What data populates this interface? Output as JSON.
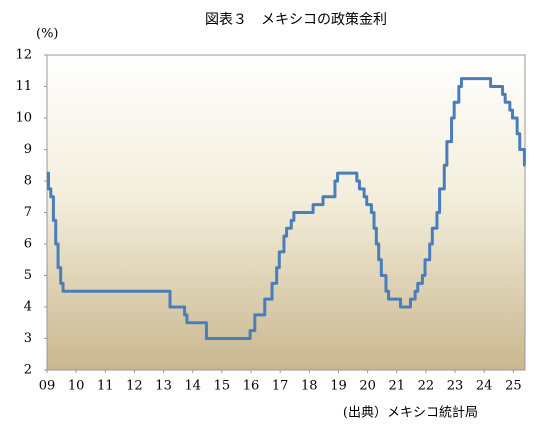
{
  "chart_data": {
    "type": "step",
    "title": "図表３　メキシコの政策金利",
    "y_label": "(%)",
    "source": "(出典）メキシコ統計局",
    "color": "#4a7ebb",
    "xlim": [
      2009,
      2025.4
    ],
    "ylim": [
      2,
      12
    ],
    "yticks": [
      2,
      3,
      4,
      5,
      6,
      7,
      8,
      9,
      10,
      11,
      12
    ],
    "xticks": [
      {
        "value": 2009,
        "label": "09"
      },
      {
        "value": 2010,
        "label": "10"
      },
      {
        "value": 2011,
        "label": "11"
      },
      {
        "value": 2012,
        "label": "12"
      },
      {
        "value": 2013,
        "label": "13"
      },
      {
        "value": 2014,
        "label": "14"
      },
      {
        "value": 2015,
        "label": "15"
      },
      {
        "value": 2016,
        "label": "16"
      },
      {
        "value": 2017,
        "label": "17"
      },
      {
        "value": 2018,
        "label": "18"
      },
      {
        "value": 2019,
        "label": "19"
      },
      {
        "value": 2020,
        "label": "20"
      },
      {
        "value": 2021,
        "label": "21"
      },
      {
        "value": 2022,
        "label": "22"
      },
      {
        "value": 2023,
        "label": "23"
      },
      {
        "value": 2024,
        "label": "24"
      },
      {
        "value": 2025,
        "label": "25"
      }
    ],
    "x": [
      2009.0,
      2009.05,
      2009.13,
      2009.22,
      2009.3,
      2009.38,
      2009.47,
      2009.55,
      2013.22,
      2013.72,
      2013.8,
      2014.47,
      2015.97,
      2016.13,
      2016.47,
      2016.72,
      2016.88,
      2016.97,
      2017.13,
      2017.22,
      2017.38,
      2017.47,
      2018.13,
      2018.47,
      2018.88,
      2018.97,
      2019.63,
      2019.72,
      2019.88,
      2019.97,
      2020.13,
      2020.22,
      2020.3,
      2020.38,
      2020.47,
      2020.63,
      2020.72,
      2021.13,
      2021.47,
      2021.63,
      2021.72,
      2021.88,
      2021.97,
      2022.13,
      2022.22,
      2022.38,
      2022.47,
      2022.63,
      2022.72,
      2022.88,
      2022.97,
      2023.13,
      2023.22,
      2024.22,
      2024.63,
      2024.72,
      2024.88,
      2024.97,
      2025.13,
      2025.22,
      2025.38
    ],
    "values": [
      8.25,
      7.75,
      7.5,
      6.75,
      6.0,
      5.25,
      4.75,
      4.5,
      4.0,
      3.75,
      3.5,
      3.0,
      3.25,
      3.75,
      4.25,
      4.75,
      5.25,
      5.75,
      6.25,
      6.5,
      6.75,
      7.0,
      7.25,
      7.5,
      8.0,
      8.25,
      8.0,
      7.75,
      7.5,
      7.25,
      7.0,
      6.5,
      6.0,
      5.5,
      5.0,
      4.5,
      4.25,
      4.0,
      4.25,
      4.5,
      4.75,
      5.0,
      5.5,
      6.0,
      6.5,
      7.0,
      7.75,
      8.5,
      9.25,
      10.0,
      10.5,
      11.0,
      11.25,
      11.0,
      10.75,
      10.5,
      10.25,
      10.0,
      9.5,
      9.0,
      8.5
    ]
  }
}
